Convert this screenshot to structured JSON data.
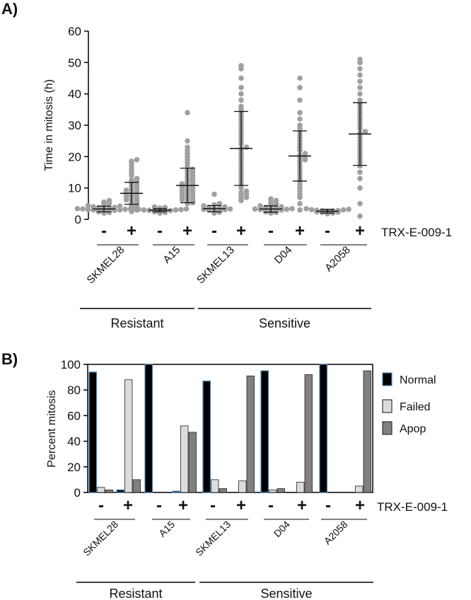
{
  "chart_data": [
    {
      "panel": "A)",
      "type": "scatter",
      "ylabel": "Time in mitosis (h)",
      "ylim": [
        0,
        60
      ],
      "yticks": [
        0,
        10,
        20,
        30,
        40,
        50,
        60
      ],
      "treatment_label": "TRX-E-009-1",
      "treatment_signs": [
        "-",
        "+"
      ],
      "groups": [
        {
          "name": "SKMEL28",
          "category": "Resistant",
          "conditions": [
            {
              "sign": "-",
              "mean": 3.3,
              "sd": 0.9,
              "points": [
                2.0,
                2.2,
                2.4,
                2.6,
                2.7,
                2.8,
                2.9,
                3.0,
                3.0,
                3.1,
                3.2,
                3.3,
                3.3,
                3.4,
                3.5,
                3.6,
                3.7,
                3.8,
                4.0,
                4.2,
                4.4,
                4.7,
                5.0,
                5.5,
                6.0
              ]
            },
            {
              "sign": "+",
              "mean": 8.3,
              "sd": 3.5,
              "points": [
                2.5,
                3.0,
                3.5,
                4.0,
                4.5,
                5.0,
                5.5,
                6.0,
                6.2,
                6.5,
                7.0,
                7.3,
                7.5,
                8.0,
                8.2,
                8.5,
                9.0,
                9.3,
                9.5,
                10.0,
                10.5,
                11.0,
                11.5,
                12.0,
                12.5,
                13.0,
                14.0,
                15.0,
                16.0,
                17.0,
                18.0,
                18.5,
                19.0
              ]
            }
          ]
        },
        {
          "name": "A15",
          "category": "Resistant",
          "conditions": [
            {
              "sign": "-",
              "mean": 2.9,
              "sd": 0.5,
              "points": [
                2.0,
                2.2,
                2.4,
                2.5,
                2.6,
                2.7,
                2.8,
                2.9,
                3.0,
                3.0,
                3.1,
                3.2,
                3.3,
                3.4,
                3.6,
                3.8,
                4.0
              ]
            },
            {
              "sign": "+",
              "mean": 10.8,
              "sd": 5.5,
              "points": [
                5.0,
                5.3,
                5.6,
                6.0,
                6.3,
                6.6,
                7.0,
                7.3,
                7.6,
                8.0,
                8.3,
                8.6,
                9.0,
                9.3,
                9.6,
                10.0,
                10.3,
                10.6,
                11.0,
                11.3,
                11.6,
                12.0,
                12.5,
                13.0,
                13.5,
                14.0,
                14.5,
                15.0,
                15.5,
                16.0,
                17.0,
                18.0,
                19.0,
                20.0,
                21.0,
                22.0,
                23.0,
                25.0,
                34.0
              ]
            }
          ]
        },
        {
          "name": "SKMEL13",
          "category": "Sensitive",
          "conditions": [
            {
              "sign": "-",
              "mean": 3.4,
              "sd": 1.0,
              "points": [
                2.0,
                2.3,
                2.6,
                2.8,
                3.0,
                3.1,
                3.2,
                3.3,
                3.5,
                3.6,
                3.8,
                4.0,
                4.3,
                4.6,
                5.0,
                8.0
              ]
            },
            {
              "sign": "+",
              "mean": 22.6,
              "sd": 11.8,
              "points": [
                6.0,
                6.5,
                7.0,
                7.5,
                8.0,
                8.5,
                9.0,
                10.0,
                11.0,
                12.0,
                13.0,
                14.0,
                15.0,
                16.0,
                17.0,
                18.0,
                19.0,
                20.0,
                21.0,
                22.0,
                22.5,
                23.0,
                24.0,
                25.0,
                26.0,
                27.0,
                28.0,
                29.0,
                30.0,
                31.0,
                32.0,
                33.0,
                34.0,
                35.0,
                36.0,
                38.0,
                40.0,
                42.0,
                45.0,
                48.0,
                49.0
              ]
            }
          ]
        },
        {
          "name": "D04",
          "category": "Sensitive",
          "conditions": [
            {
              "sign": "-",
              "mean": 3.3,
              "sd": 1.0,
              "points": [
                2.0,
                2.2,
                2.4,
                2.6,
                2.8,
                3.0,
                3.0,
                3.1,
                3.2,
                3.3,
                3.4,
                3.5,
                3.6,
                3.8,
                4.0,
                4.3,
                4.6,
                5.0,
                5.5,
                6.0,
                6.5
              ]
            },
            {
              "sign": "+",
              "mean": 20.2,
              "sd": 8.0,
              "points": [
                3.0,
                5.0,
                7.0,
                8.0,
                9.0,
                10.0,
                11.0,
                12.0,
                13.0,
                14.0,
                15.0,
                16.0,
                17.0,
                18.0,
                18.5,
                19.0,
                19.5,
                20.0,
                20.5,
                21.0,
                22.0,
                23.0,
                24.0,
                25.0,
                26.0,
                27.0,
                28.0,
                29.0,
                30.0,
                32.0,
                34.0,
                38.0,
                42.0,
                45.0
              ]
            }
          ]
        },
        {
          "name": "A2058",
          "category": "Sensitive",
          "conditions": [
            {
              "sign": "-",
              "mean": 2.6,
              "sd": 0.6,
              "points": [
                1.8,
                2.0,
                2.2,
                2.3,
                2.4,
                2.5,
                2.6,
                2.7,
                2.8,
                2.9,
                3.0,
                3.1,
                3.2,
                3.4
              ]
            },
            {
              "sign": "+",
              "mean": 27.2,
              "sd": 10.0,
              "points": [
                1.0,
                5.0,
                10.0,
                13.0,
                15.0,
                17.0,
                18.0,
                19.0,
                20.0,
                21.0,
                22.0,
                23.0,
                24.0,
                25.0,
                26.0,
                27.0,
                27.5,
                28.0,
                29.0,
                30.0,
                31.0,
                32.0,
                33.0,
                34.0,
                35.0,
                36.0,
                37.0,
                38.0,
                40.0,
                42.0,
                44.0,
                46.0,
                48.0,
                50.0,
                51.0
              ]
            }
          ]
        }
      ],
      "categories": [
        {
          "name": "Resistant",
          "groups": [
            "SKMEL28",
            "A15"
          ]
        },
        {
          "name": "Sensitive",
          "groups": [
            "SKMEL13",
            "D04",
            "A2058"
          ]
        }
      ]
    },
    {
      "panel": "B)",
      "type": "bar",
      "ylabel": "Percent mitosis",
      "ylim": [
        0,
        100
      ],
      "yticks": [
        0,
        20,
        40,
        60,
        80,
        100
      ],
      "treatment_label": "TRX-E-009-1",
      "treatment_signs": [
        "-",
        "+"
      ],
      "legend_position": "right",
      "series": [
        {
          "name": "Normal",
          "color": "#000000"
        },
        {
          "name": "Failed",
          "color": "#dcdcdc"
        },
        {
          "name": "Apop",
          "color": "#808080"
        }
      ],
      "groups": [
        {
          "name": "SKMEL28",
          "category": "Resistant",
          "minus": [
            94,
            4,
            2
          ],
          "plus": [
            2,
            88,
            10
          ]
        },
        {
          "name": "A15",
          "category": "Resistant",
          "minus": [
            100,
            0,
            0
          ],
          "plus": [
            1,
            52,
            47
          ]
        },
        {
          "name": "SKMEL13",
          "category": "Sensitive",
          "minus": [
            87,
            10,
            3
          ],
          "plus": [
            0,
            9,
            91
          ]
        },
        {
          "name": "D04",
          "category": "Sensitive",
          "minus": [
            95,
            2,
            3
          ],
          "plus": [
            0,
            8,
            92
          ]
        },
        {
          "name": "A2058",
          "category": "Sensitive",
          "minus": [
            100,
            0,
            0
          ],
          "plus": [
            0,
            5,
            95
          ]
        }
      ],
      "categories": [
        {
          "name": "Resistant",
          "groups": [
            "SKMEL28",
            "A15"
          ]
        },
        {
          "name": "Sensitive",
          "groups": [
            "SKMEL13",
            "D04",
            "A2058"
          ]
        }
      ]
    }
  ]
}
